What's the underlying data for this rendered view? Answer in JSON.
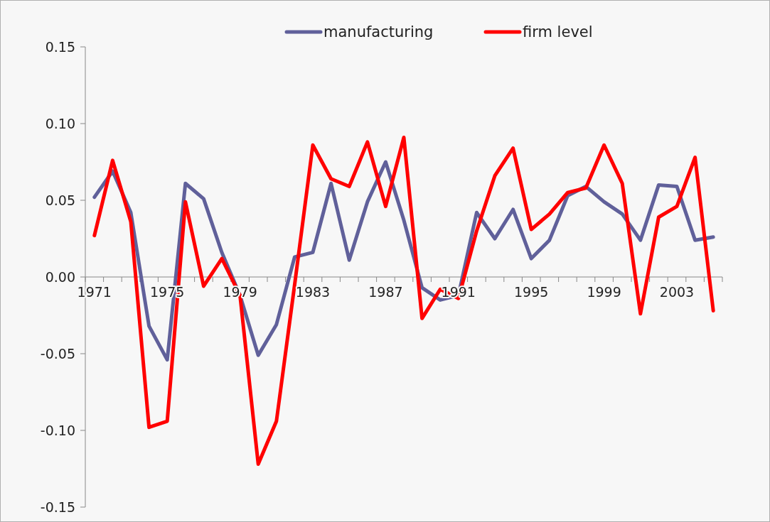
{
  "chart_data": {
    "type": "line",
    "categories": [
      "1971",
      null,
      null,
      null,
      "1975",
      null,
      null,
      null,
      "1979",
      null,
      null,
      null,
      "1983",
      null,
      null,
      null,
      "1987",
      null,
      null,
      null,
      "1991",
      null,
      null,
      null,
      "1995",
      null,
      null,
      null,
      "1999",
      null,
      null,
      null,
      "2003",
      null,
      null
    ],
    "series": [
      {
        "name": "manufacturing",
        "color": "#60609a",
        "values": [
          0.052,
          0.069,
          0.042,
          -0.032,
          -0.054,
          0.061,
          0.051,
          0.016,
          -0.012,
          -0.051,
          -0.031,
          0.013,
          0.016,
          0.061,
          0.011,
          0.049,
          0.075,
          0.037,
          -0.007,
          -0.015,
          -0.012,
          0.042,
          0.025,
          0.044,
          0.012,
          0.024,
          0.053,
          0.059,
          0.049,
          0.041,
          0.024,
          0.06,
          0.059,
          0.024,
          0.026
        ]
      },
      {
        "name": "firm level",
        "color": "#ff0000",
        "values": [
          0.027,
          0.076,
          0.036,
          -0.098,
          -0.094,
          0.049,
          -0.006,
          0.012,
          -0.012,
          -0.122,
          -0.094,
          -0.005,
          0.086,
          0.064,
          0.059,
          0.088,
          0.046,
          0.091,
          -0.027,
          -0.008,
          -0.014,
          0.03,
          0.066,
          0.084,
          0.031,
          0.041,
          0.055,
          0.058,
          0.086,
          0.061,
          -0.024,
          0.039,
          0.046,
          0.078,
          -0.022
        ]
      }
    ],
    "ylim": [
      -0.15,
      0.15
    ],
    "yticks": [
      {
        "value": -0.15,
        "label": "-0.15"
      },
      {
        "value": -0.1,
        "label": "-0.10"
      },
      {
        "value": -0.05,
        "label": "-0.05"
      },
      {
        "value": 0,
        "label": "0.00"
      },
      {
        "value": 0.05,
        "label": "0.05"
      },
      {
        "value": 0.1,
        "label": "0.10"
      },
      {
        "value": 0.15,
        "label": "0.15"
      }
    ],
    "grid": false,
    "legend": "top",
    "marker": "none",
    "line_style": "solid"
  }
}
